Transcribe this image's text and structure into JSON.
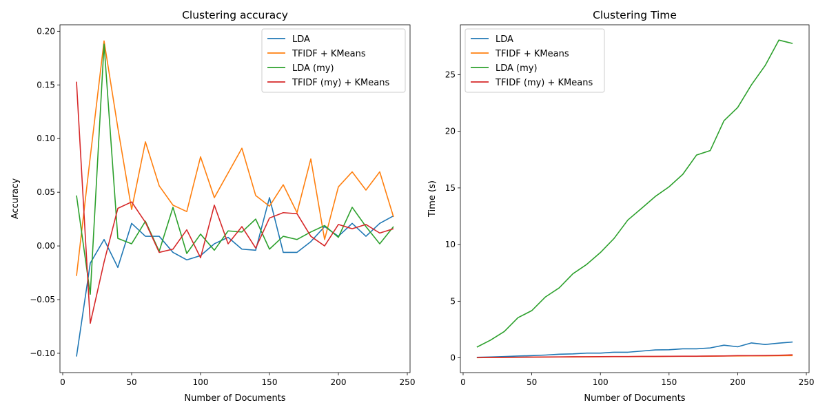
{
  "chart_data": [
    {
      "type": "line",
      "title": "Clustering accuracy",
      "xlabel": "Number of Documents",
      "ylabel": "Accuracy",
      "xlim": [
        -2,
        252
      ],
      "ylim": [
        -0.118,
        0.206
      ],
      "xticks": [
        0,
        50,
        100,
        150,
        200,
        250
      ],
      "yticks": [
        -0.1,
        -0.05,
        0.0,
        0.05,
        0.1,
        0.15,
        0.2
      ],
      "ytick_labels": [
        "−0.10",
        "−0.05",
        "0.00",
        "0.05",
        "0.10",
        "0.15",
        "0.20"
      ],
      "legend_position": "upper right",
      "x": [
        10,
        20,
        30,
        40,
        50,
        60,
        70,
        80,
        90,
        100,
        110,
        120,
        130,
        140,
        150,
        160,
        170,
        180,
        190,
        200,
        210,
        220,
        230,
        240
      ],
      "series": [
        {
          "name": "LDA",
          "color": "#1f77b4",
          "values": [
            -0.103,
            -0.016,
            0.006,
            -0.02,
            0.021,
            0.009,
            0.009,
            -0.006,
            -0.013,
            -0.009,
            0.002,
            0.008,
            -0.003,
            -0.004,
            0.045,
            -0.006,
            -0.006,
            0.004,
            0.018,
            0.009,
            0.021,
            0.009,
            0.021,
            0.028
          ]
        },
        {
          "name": "TFIDF + KMeans",
          "color": "#ff7f0e",
          "values": [
            -0.028,
            0.083,
            0.191,
            0.11,
            0.034,
            0.097,
            0.056,
            0.038,
            0.032,
            0.083,
            0.045,
            0.068,
            0.091,
            0.047,
            0.037,
            0.057,
            0.031,
            0.081,
            0.006,
            0.055,
            0.069,
            0.052,
            0.069,
            0.027
          ]
        },
        {
          "name": "LDA (my)",
          "color": "#2ca02c",
          "values": [
            0.047,
            -0.045,
            0.188,
            0.007,
            0.002,
            0.023,
            -0.005,
            0.036,
            -0.007,
            0.011,
            -0.004,
            0.014,
            0.013,
            0.025,
            -0.003,
            0.009,
            0.006,
            0.013,
            0.019,
            0.008,
            0.036,
            0.018,
            0.002,
            0.018
          ]
        },
        {
          "name": "TFIDF (my) + KMeans",
          "color": "#d62728",
          "values": [
            0.153,
            -0.072,
            -0.015,
            0.035,
            0.041,
            0.022,
            -0.006,
            -0.003,
            0.015,
            -0.011,
            0.038,
            0.002,
            0.018,
            -0.002,
            0.026,
            0.031,
            0.03,
            0.009,
            0.0,
            0.02,
            0.016,
            0.02,
            0.012,
            0.016
          ]
        }
      ]
    },
    {
      "type": "line",
      "title": "Clustering Time",
      "xlabel": "Number of Documents",
      "ylabel": "Time (s)",
      "xlim": [
        -2,
        252
      ],
      "ylim": [
        -1.3,
        29.4
      ],
      "xticks": [
        0,
        50,
        100,
        150,
        200,
        250
      ],
      "yticks": [
        0,
        5,
        10,
        15,
        20,
        25
      ],
      "ytick_labels": [
        "0",
        "5",
        "10",
        "15",
        "20",
        "25"
      ],
      "legend_position": "upper left",
      "x": [
        10,
        20,
        30,
        40,
        50,
        60,
        70,
        80,
        90,
        100,
        110,
        120,
        130,
        140,
        150,
        160,
        170,
        180,
        190,
        200,
        210,
        220,
        230,
        240
      ],
      "series": [
        {
          "name": "LDA",
          "color": "#1f77b4",
          "values": [
            0.05,
            0.08,
            0.12,
            0.16,
            0.2,
            0.25,
            0.32,
            0.35,
            0.42,
            0.42,
            0.5,
            0.5,
            0.6,
            0.7,
            0.72,
            0.8,
            0.8,
            0.88,
            1.12,
            0.98,
            1.32,
            1.18,
            1.3,
            1.4
          ]
        },
        {
          "name": "TFIDF + KMeans",
          "color": "#ff7f0e",
          "values": [
            0.02,
            0.03,
            0.04,
            0.05,
            0.06,
            0.07,
            0.08,
            0.08,
            0.09,
            0.1,
            0.11,
            0.11,
            0.12,
            0.12,
            0.13,
            0.14,
            0.14,
            0.15,
            0.16,
            0.17,
            0.18,
            0.18,
            0.19,
            0.2
          ]
        },
        {
          "name": "LDA (my)",
          "color": "#2ca02c",
          "values": [
            0.95,
            1.57,
            2.33,
            3.55,
            4.17,
            5.38,
            6.18,
            7.43,
            8.25,
            9.3,
            10.55,
            12.17,
            13.2,
            14.25,
            15.1,
            16.2,
            17.9,
            18.3,
            20.93,
            22.1,
            24.1,
            25.8,
            28.05,
            27.75
          ]
        },
        {
          "name": "TFIDF (my) + KMeans",
          "color": "#d62728",
          "values": [
            0.03,
            0.04,
            0.05,
            0.06,
            0.07,
            0.08,
            0.09,
            0.1,
            0.1,
            0.11,
            0.12,
            0.12,
            0.13,
            0.13,
            0.14,
            0.15,
            0.15,
            0.16,
            0.17,
            0.2,
            0.2,
            0.21,
            0.23,
            0.27
          ]
        }
      ]
    }
  ]
}
